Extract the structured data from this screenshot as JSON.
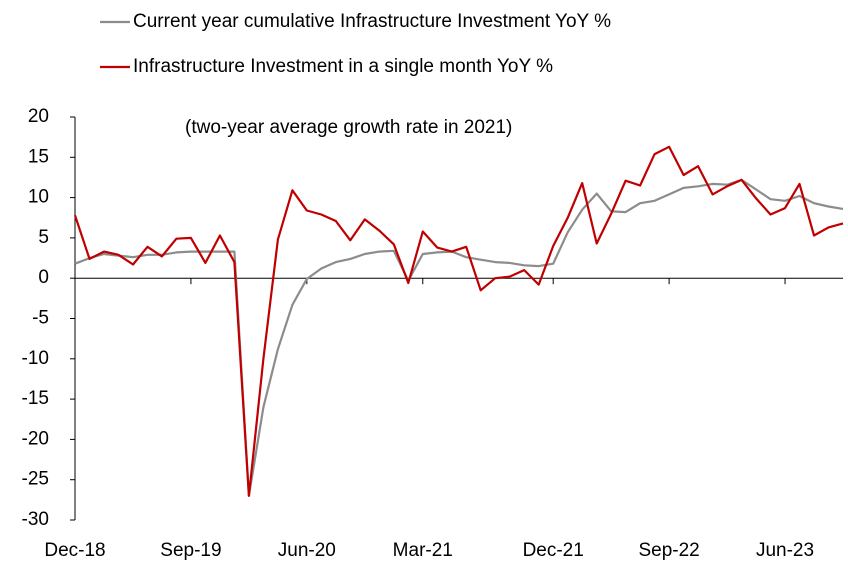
{
  "chart_data": {
    "type": "line",
    "annotation": "(two-year average growth rate in 2021)",
    "categories": [
      "Dec-18",
      null,
      null,
      null,
      null,
      null,
      null,
      null,
      "Sep-19",
      null,
      null,
      null,
      null,
      null,
      null,
      null,
      "Jun-20",
      null,
      null,
      null,
      null,
      null,
      null,
      null,
      "Mar-21",
      null,
      null,
      null,
      null,
      null,
      null,
      null,
      null,
      "Dec-21",
      null,
      null,
      null,
      null,
      null,
      null,
      null,
      "Sep-22",
      null,
      null,
      null,
      null,
      null,
      null,
      null,
      "Jun-23",
      null,
      null,
      null,
      null
    ],
    "series": [
      {
        "name": "Current year cumulative Infrastructure Investment YoY %",
        "color": "#8c8c8c",
        "values": [
          1.8,
          2.5,
          3.0,
          2.8,
          2.6,
          2.9,
          2.9,
          3.2,
          3.3,
          3.3,
          3.3,
          3.3,
          -27,
          -16,
          -8.8,
          -3.3,
          -0.1,
          1.2,
          2.0,
          2.4,
          3.0,
          3.3,
          3.4,
          -0.3,
          3.0,
          3.2,
          3.3,
          2.6,
          2.3,
          2.0,
          1.9,
          1.6,
          1.5,
          1.8,
          5.7,
          8.5,
          10.5,
          8.3,
          8.2,
          9.3,
          9.6,
          10.4,
          11.2,
          11.4,
          11.7,
          11.6,
          12.2,
          11.0,
          9.8,
          9.6,
          10.2,
          9.3,
          8.9,
          8.6
        ]
      },
      {
        "name": "Infrastructure Investment in a single month YoY %",
        "color": "#c00000",
        "values": [
          7.8,
          2.4,
          3.3,
          2.9,
          1.7,
          3.9,
          2.7,
          4.9,
          5.0,
          1.9,
          5.3,
          2.0,
          -27,
          -10,
          4.8,
          10.9,
          8.4,
          7.9,
          7.1,
          4.7,
          7.3,
          5.9,
          4.2,
          -0.6,
          5.8,
          3.8,
          3.3,
          3.9,
          -1.5,
          0.0,
          0.2,
          1.0,
          -0.8,
          4.0,
          7.5,
          11.8,
          4.3,
          8.0,
          12.1,
          11.5,
          15.4,
          16.3,
          12.8,
          13.9,
          10.4,
          11.4,
          12.2,
          9.9,
          7.9,
          8.7,
          11.7,
          5.3,
          6.3,
          6.8
        ]
      }
    ],
    "ylim": [
      -30,
      20
    ],
    "yticks": [
      -30,
      -25,
      -20,
      -15,
      -10,
      -5,
      0,
      5,
      10,
      15,
      20
    ]
  }
}
